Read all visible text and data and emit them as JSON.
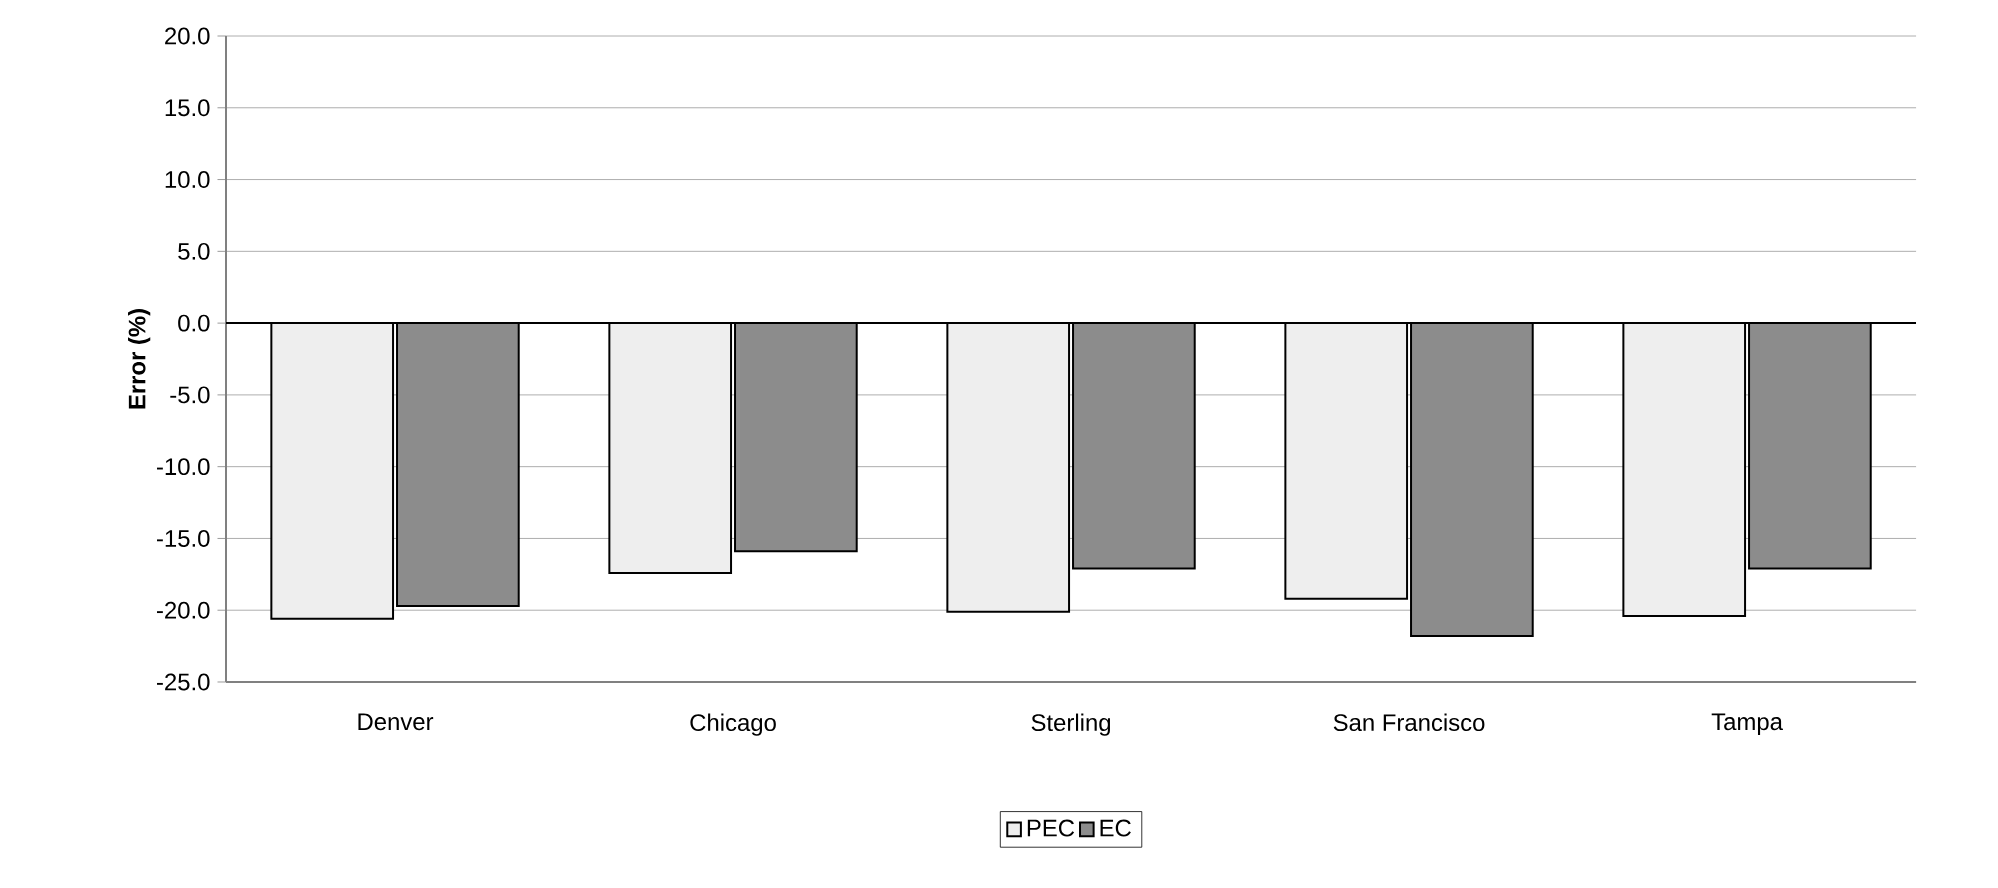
{
  "chart_data": {
    "type": "bar",
    "ylabel": "Error (%)",
    "categories": [
      "Denver",
      "Chicago",
      "Sterling",
      "San Francisco",
      "Tampa"
    ],
    "series": [
      {
        "name": "PEC",
        "color": "#eeeeee",
        "values": [
          -20.6,
          -17.4,
          -20.1,
          -19.2,
          -20.4
        ]
      },
      {
        "name": "EC",
        "color": "#8c8c8c",
        "values": [
          -19.7,
          -15.9,
          -17.1,
          -21.8,
          -17.1
        ]
      }
    ],
    "ylim": [
      -25,
      20
    ],
    "yticks": [
      {
        "value": -25,
        "label": "-25.0"
      },
      {
        "value": -20,
        "label": "-20.0"
      },
      {
        "value": -15,
        "label": "-15.0"
      },
      {
        "value": -10,
        "label": "-10.0"
      },
      {
        "value": -5,
        "label": "-5.0"
      },
      {
        "value": 0,
        "label": "0.0"
      },
      {
        "value": 5,
        "label": "5.0"
      },
      {
        "value": 10,
        "label": "10.0"
      },
      {
        "value": 15,
        "label": "15.0"
      },
      {
        "value": 20,
        "label": "20.0"
      }
    ],
    "grid": "y",
    "legend": "bottom"
  }
}
